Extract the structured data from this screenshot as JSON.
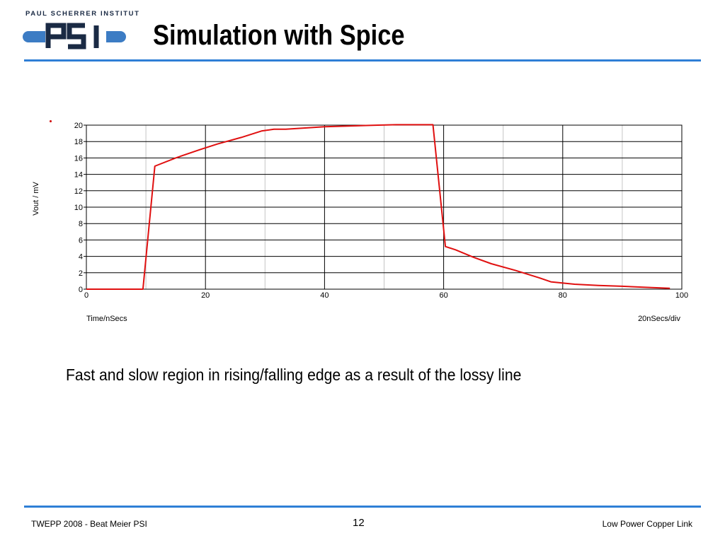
{
  "logo": {
    "caption": "PAUL SCHERRER INSTITUT",
    "mark": "PSI"
  },
  "slide": {
    "title": "Simulation with Spice",
    "caption": "Fast and slow region in rising/falling edge as a result of the lossy line"
  },
  "chart_data": {
    "type": "line",
    "title": "",
    "xlabel": "Time/nSecs",
    "ylabel": "Vout / mV",
    "x_scale_note": "20nSecs/div",
    "xlim": [
      0,
      100
    ],
    "ylim": [
      0,
      20
    ],
    "x_ticks": [
      0,
      20,
      40,
      60,
      80,
      100
    ],
    "y_ticks": [
      0,
      2,
      4,
      6,
      8,
      10,
      12,
      14,
      16,
      18,
      20
    ],
    "x_gridlines": [
      0,
      10,
      20,
      30,
      40,
      50,
      60,
      70,
      80,
      90,
      100
    ],
    "grid": true,
    "series": [
      {
        "color": "#e01010",
        "x": [
          0,
          9.5,
          11.5,
          15,
          19,
          22,
          26,
          29.5,
          31.5,
          33.5,
          40,
          44,
          49,
          52,
          55,
          58.2,
          60.3,
          62,
          65,
          68,
          72,
          76,
          78,
          82,
          86,
          90,
          95,
          98
        ],
        "y": [
          0,
          0,
          15.0,
          16.0,
          17.0,
          17.7,
          18.5,
          19.3,
          19.5,
          19.5,
          19.8,
          19.9,
          20.0,
          20.05,
          20.05,
          20.05,
          5.2,
          4.8,
          3.9,
          3.1,
          2.3,
          1.4,
          0.9,
          0.6,
          0.45,
          0.35,
          0.2,
          0.1
        ]
      }
    ]
  },
  "footer": {
    "left": "TWEPP 2008 - Beat Meier PSI",
    "page": "12",
    "right": "Low Power Copper Link"
  }
}
